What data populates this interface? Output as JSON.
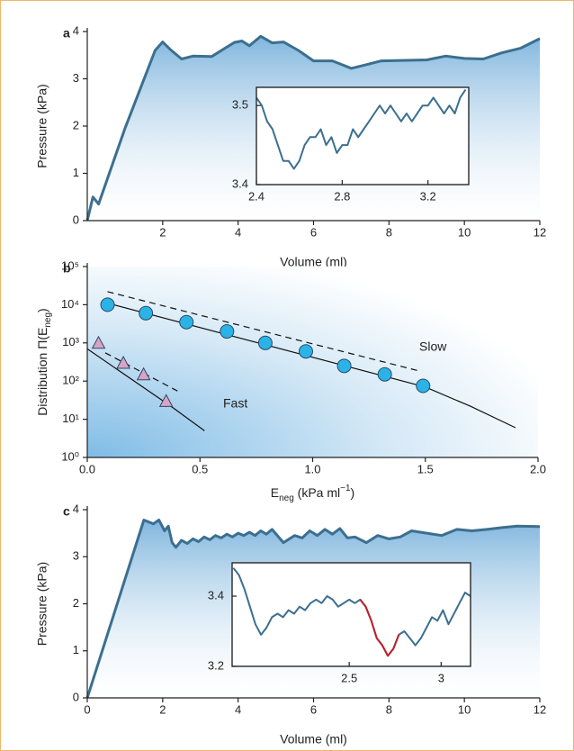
{
  "chart_data": [
    {
      "type": "area",
      "label": "a",
      "xlabel": "Volume  (ml)",
      "ylabel": "Pressure (kPa)",
      "color": "#3c6f8f",
      "x": [
        0,
        0.15,
        0.3,
        1,
        1.8,
        2,
        2.2,
        2.5,
        2.8,
        3.3,
        3.6,
        3.9,
        4.1,
        4.3,
        4.6,
        4.9,
        5.2,
        5.6,
        6,
        6.5,
        7,
        7.4,
        7.8,
        9,
        9.5,
        10,
        10.5,
        11,
        11.5,
        12
      ],
      "values": [
        0,
        0.5,
        0.35,
        1.95,
        3.6,
        3.78,
        3.62,
        3.42,
        3.48,
        3.47,
        3.62,
        3.77,
        3.8,
        3.7,
        3.9,
        3.76,
        3.78,
        3.6,
        3.38,
        3.38,
        3.22,
        3.3,
        3.38,
        3.4,
        3.48,
        3.43,
        3.42,
        3.55,
        3.65,
        3.85
      ],
      "xlim": [
        0,
        12
      ],
      "ylim": [
        0,
        4
      ],
      "xticks": [
        2,
        4,
        6,
        8,
        10,
        12
      ],
      "yticks": [
        0,
        1,
        2,
        3,
        4
      ]
    },
    {
      "type": "line",
      "color": "#3c6f8f",
      "x": [
        2.4,
        2.425,
        2.45,
        2.475,
        2.5,
        2.525,
        2.55,
        2.575,
        2.6,
        2.625,
        2.65,
        2.675,
        2.7,
        2.725,
        2.75,
        2.775,
        2.8,
        2.825,
        2.85,
        2.875,
        2.9,
        2.925,
        2.95,
        2.975,
        3,
        3.025,
        3.05,
        3.075,
        3.1,
        3.125,
        3.15,
        3.175,
        3.2,
        3.225,
        3.25,
        3.275,
        3.3,
        3.325,
        3.35,
        3.375
      ],
      "series": [
        {
          "color": "#3c6f8f",
          "values": [
            3.51,
            3.5,
            3.48,
            3.47,
            3.45,
            3.43,
            3.43,
            3.42,
            3.43,
            3.45,
            3.46,
            3.46,
            3.47,
            3.45,
            3.46,
            3.44,
            3.45,
            3.45,
            3.47,
            3.46,
            3.47,
            3.48,
            3.49,
            3.5,
            3.49,
            3.5,
            3.49,
            3.48,
            3.49,
            3.48,
            3.49,
            3.5,
            3.5,
            3.51,
            3.5,
            3.49,
            3.5,
            3.49,
            3.51,
            3.52
          ]
        }
      ],
      "xlim": [
        2.4,
        3.39
      ],
      "ylim": [
        3.4,
        3.523
      ],
      "xticks": [
        2.4,
        2.8,
        3.2
      ],
      "yticks": [
        3.4,
        3.5
      ]
    },
    {
      "type": "scatter",
      "label": "b",
      "log": true,
      "xlabel": [
        "E",
        "neg",
        " (kPa ml",
        "−1",
        ")"
      ],
      "ylabel": [
        "Distribution Π(E",
        "neg",
        ")"
      ],
      "series": [
        {
          "name": "Slow",
          "marker": "circle",
          "color": "#2bb3e8",
          "x": [
            0.09,
            0.26,
            0.44,
            0.62,
            0.79,
            0.97,
            1.14,
            1.32,
            1.49
          ],
          "values": [
            10000,
            6000,
            3500,
            2000,
            1000,
            600,
            250,
            150,
            75
          ]
        },
        {
          "name": "Fast",
          "marker": "triangle",
          "color": "#d9a3c6",
          "x": [
            0.05,
            0.16,
            0.25,
            0.35
          ],
          "values": [
            1000,
            300,
            150,
            30
          ]
        }
      ],
      "lines": [
        {
          "dashed": false,
          "x": [
            0.09,
            1.5,
            1.7,
            1.9
          ],
          "values": [
            11000,
            70,
            22,
            6
          ]
        },
        {
          "dashed": true,
          "x": [
            0.09,
            1.48
          ],
          "values": [
            22000,
            180
          ]
        },
        {
          "dashed": false,
          "x": [
            0,
            0.38,
            0.52
          ],
          "values": [
            700,
            20,
            5
          ]
        },
        {
          "dashed": true,
          "x": [
            0.08,
            0.4
          ],
          "values": [
            550,
            55
          ]
        }
      ],
      "xlim": [
        0,
        2
      ],
      "ylim": [
        1,
        100000
      ],
      "xticks": [
        {
          "value": 0,
          "label": "0.0"
        },
        0.5,
        {
          "value": 1,
          "label": "1.0"
        },
        1.5,
        {
          "value": 2,
          "label": "2.0"
        }
      ],
      "yticks": [
        {
          "value": 1,
          "label": "10⁰"
        },
        {
          "value": 10,
          "label": "10¹"
        },
        {
          "value": 100,
          "label": "10²"
        },
        {
          "value": 1000,
          "label": "10³"
        },
        {
          "value": 10000,
          "label": "10⁴"
        },
        {
          "value": 100000,
          "label": "10⁵"
        }
      ]
    },
    {
      "type": "area",
      "label": "c",
      "xlabel": "Volume  (ml)",
      "ylabel": "Pressure (kPa)",
      "color": "#3c6f8f",
      "x": [
        0,
        1.5,
        1.75,
        1.9,
        2.05,
        2.15,
        2.25,
        2.35,
        2.5,
        2.65,
        2.8,
        2.95,
        3.1,
        3.25,
        3.4,
        3.55,
        3.7,
        3.85,
        4,
        4.15,
        4.3,
        4.45,
        4.6,
        4.75,
        4.9,
        5.2,
        5.5,
        5.7,
        5.9,
        6.1,
        6.3,
        6.5,
        6.7,
        6.9,
        7.1,
        7.4,
        7.7,
        8,
        8.3,
        8.6,
        9,
        9.4,
        9.8,
        10.2,
        10.6,
        11,
        11.4,
        12
      ],
      "values": [
        0,
        3.78,
        3.7,
        3.78,
        3.55,
        3.65,
        3.3,
        3.2,
        3.35,
        3.28,
        3.38,
        3.32,
        3.42,
        3.36,
        3.45,
        3.4,
        3.48,
        3.42,
        3.5,
        3.45,
        3.52,
        3.45,
        3.55,
        3.48,
        3.58,
        3.3,
        3.45,
        3.4,
        3.55,
        3.45,
        3.58,
        3.48,
        3.6,
        3.4,
        3.42,
        3.3,
        3.45,
        3.38,
        3.42,
        3.55,
        3.5,
        3.45,
        3.58,
        3.55,
        3.58,
        3.62,
        3.65,
        3.64
      ],
      "xlim": [
        0,
        12
      ],
      "ylim": [
        0,
        4
      ],
      "xticks": [
        0,
        2,
        4,
        6,
        8,
        10,
        12
      ],
      "yticks": [
        0,
        1,
        2,
        3,
        4
      ]
    },
    {
      "type": "line",
      "x": [
        1.87,
        1.9,
        1.93,
        1.96,
        1.99,
        2.02,
        2.05,
        2.08,
        2.11,
        2.14,
        2.17,
        2.2,
        2.23,
        2.26,
        2.29,
        2.32,
        2.35,
        2.38,
        2.41,
        2.44,
        2.47,
        2.5,
        2.53,
        2.56,
        2.59,
        2.62,
        2.65,
        2.68,
        2.71,
        2.74,
        2.77,
        2.8,
        2.83,
        2.86,
        2.89,
        2.92,
        2.95,
        2.98,
        3.01,
        3.04,
        3.07,
        3.1,
        3.13,
        3.16
      ],
      "series": [
        {
          "color": "#3c6f8f",
          "values": [
            3.48,
            3.46,
            3.42,
            3.37,
            3.32,
            3.29,
            3.31,
            3.34,
            3.35,
            3.34,
            3.36,
            3.35,
            3.37,
            3.36,
            3.38,
            3.39,
            3.38,
            3.4,
            3.39,
            3.37,
            3.38,
            3.39,
            3.38,
            3.39,
            3.37,
            3.33,
            3.28,
            3.26,
            3.23,
            3.25,
            3.29,
            3.3,
            3.28,
            3.26,
            3.28,
            3.31,
            3.34,
            3.33,
            3.36,
            3.32,
            3.35,
            3.38,
            3.41,
            3.4
          ]
        },
        {
          "color": "#c0202a",
          "values": [
            null,
            null,
            null,
            null,
            null,
            null,
            null,
            null,
            null,
            null,
            null,
            null,
            null,
            null,
            null,
            null,
            null,
            null,
            null,
            null,
            null,
            null,
            null,
            3.39,
            3.37,
            3.33,
            3.28,
            3.26,
            3.23,
            3.25,
            3.29,
            null,
            null,
            null,
            null,
            null,
            null,
            null,
            null,
            null,
            null,
            null,
            null,
            null
          ]
        }
      ],
      "xlim": [
        1.863,
        3.16
      ],
      "ylim": [
        3.2,
        3.495
      ],
      "xticks": [
        2.5,
        3
      ],
      "yticks": [
        3.2,
        3.4
      ]
    }
  ]
}
